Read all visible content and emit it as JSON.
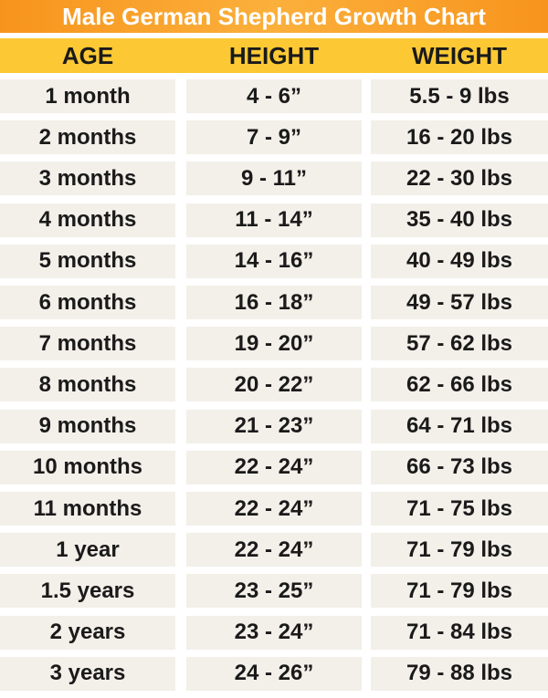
{
  "table": {
    "title": "Male German Shepherd Growth Chart",
    "header": [
      "AGE",
      "HEIGHT",
      "WEIGHT"
    ],
    "rows": [
      [
        "1 month",
        "4 - 6”",
        "5.5 - 9 lbs"
      ],
      [
        "2 months",
        "7 - 9”",
        "16 - 20 lbs"
      ],
      [
        "3 months",
        "9 - 11”",
        "22 - 30 lbs"
      ],
      [
        "4 months",
        "11 - 14”",
        "35 - 40 lbs"
      ],
      [
        "5 months",
        "14 - 16”",
        "40 - 49 lbs"
      ],
      [
        "6 months",
        "16 - 18”",
        "49 - 57 lbs"
      ],
      [
        "7 months",
        "19 - 20”",
        "57 - 62 lbs"
      ],
      [
        "8 months",
        "20 - 22”",
        "62 - 66 lbs"
      ],
      [
        "9 months",
        "21 - 23”",
        "64 - 71 lbs"
      ],
      [
        "10 months",
        "22 - 24”",
        "66 - 73 lbs"
      ],
      [
        "11 months",
        "22 - 24”",
        "71 - 75 lbs"
      ],
      [
        "1 year",
        "22 - 24”",
        "71 - 79 lbs"
      ],
      [
        "1.5 years",
        "23 - 25”",
        "71 - 79 lbs"
      ],
      [
        "2 years",
        "23 - 24”",
        "71 - 84 lbs"
      ],
      [
        "3 years",
        "24 - 26”",
        "79 - 88 lbs"
      ]
    ]
  }
}
